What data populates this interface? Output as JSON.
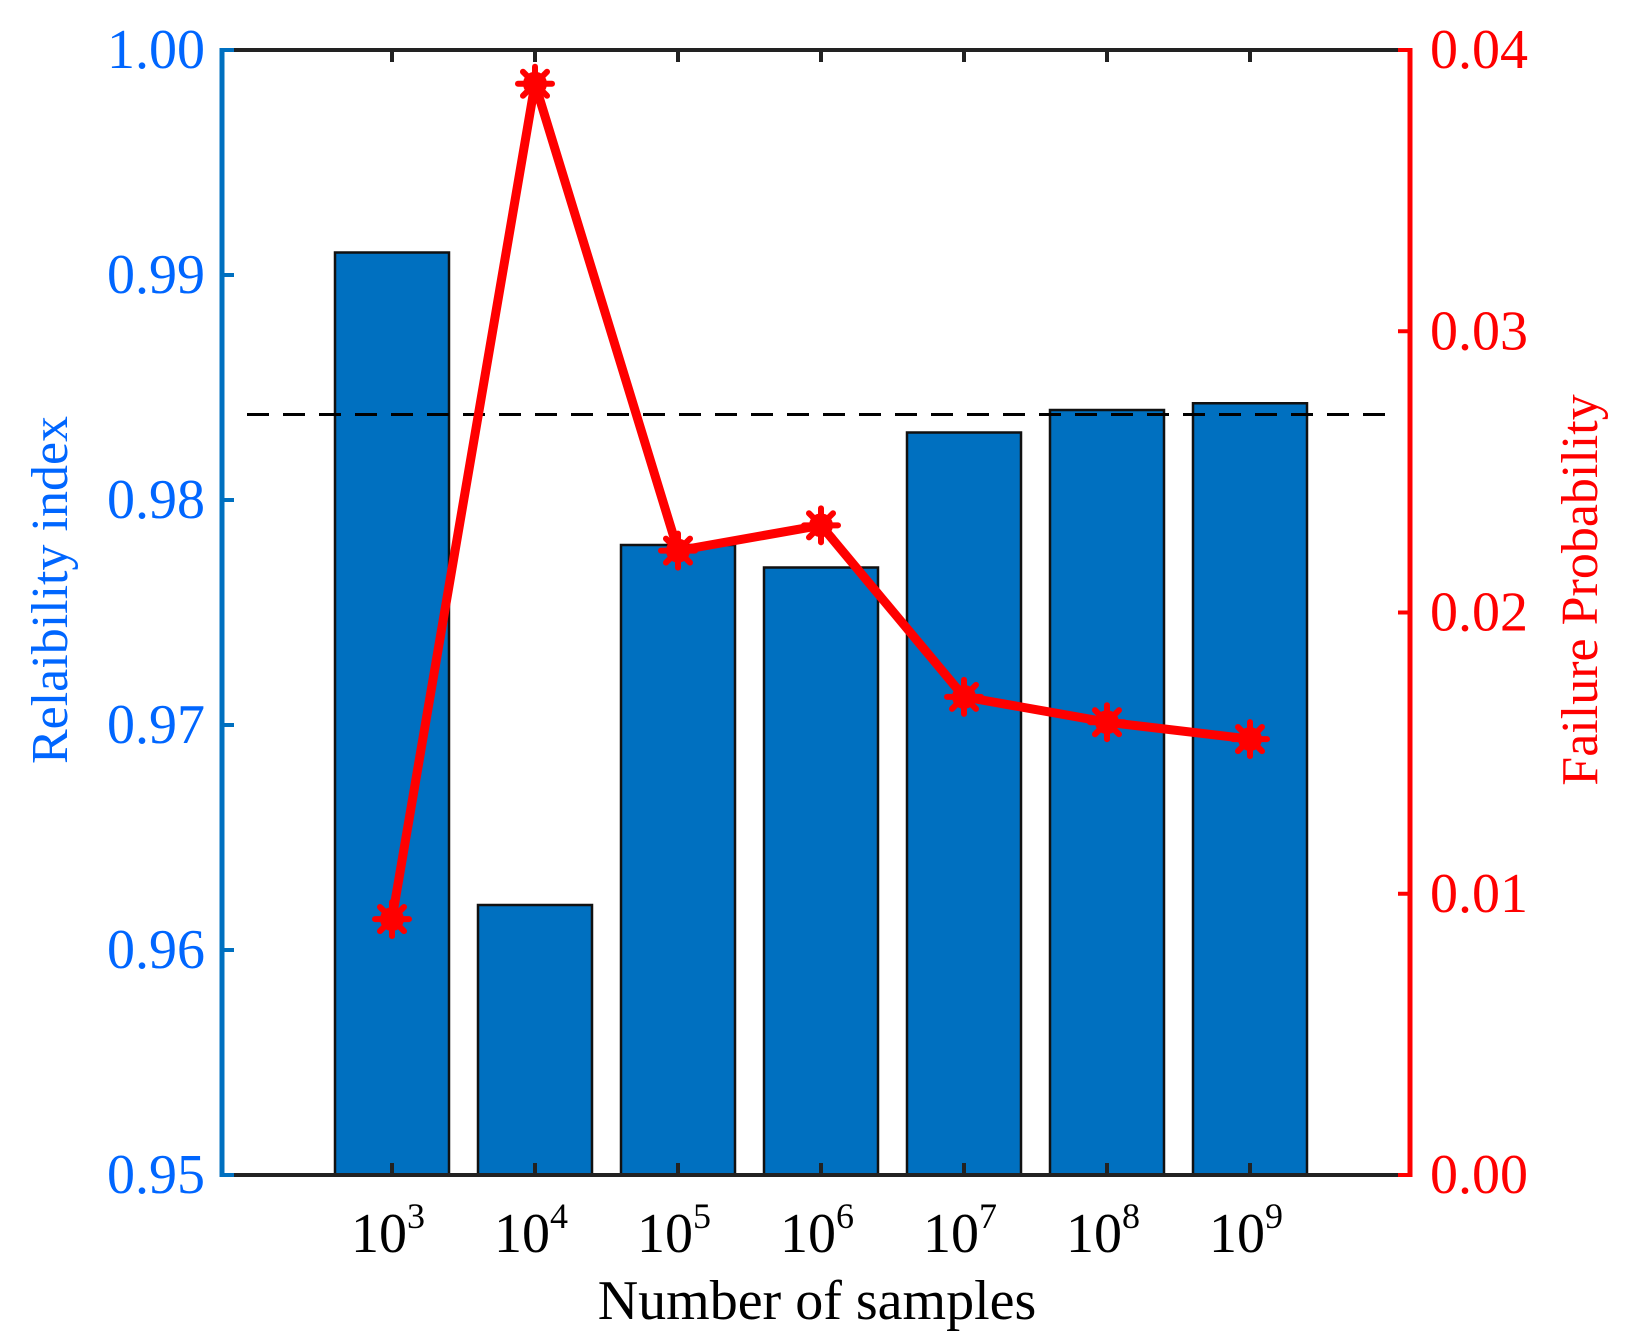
{
  "chart_data": {
    "type": "bar",
    "xlabel": "Number of samples",
    "categories": [
      {
        "base": "10",
        "exp": "3"
      },
      {
        "base": "10",
        "exp": "4"
      },
      {
        "base": "10",
        "exp": "5"
      },
      {
        "base": "10",
        "exp": "6"
      },
      {
        "base": "10",
        "exp": "7"
      },
      {
        "base": "10",
        "exp": "8"
      },
      {
        "base": "10",
        "exp": "9"
      }
    ],
    "left_axis": {
      "label": "Relaibility index",
      "ylim": [
        0.95,
        1.0
      ],
      "ticks": [
        "0.95",
        "0.96",
        "0.97",
        "0.98",
        "0.99",
        "1.00"
      ],
      "color": "#0066ff"
    },
    "right_axis": {
      "label": "Failure Probability",
      "ylim": [
        0.0,
        0.04
      ],
      "ticks": [
        "0.00",
        "0.01",
        "0.02",
        "0.03",
        "0.04"
      ],
      "color": "#ff0000"
    },
    "series": [
      {
        "type": "bar",
        "axis": "left",
        "color": "#0070c0",
        "values": [
          0.991,
          0.962,
          0.978,
          0.977,
          0.983,
          0.984,
          0.9843
        ]
      },
      {
        "type": "line",
        "axis": "right",
        "marker": "asterisk",
        "color": "#ff0000",
        "values": [
          0.0091,
          0.0388,
          0.0222,
          0.0231,
          0.017,
          0.0161,
          0.0155
        ]
      }
    ],
    "reference_line": {
      "axis": "left",
      "value": 0.9838,
      "style": "dashed"
    },
    "grid": false,
    "legend": "none"
  }
}
